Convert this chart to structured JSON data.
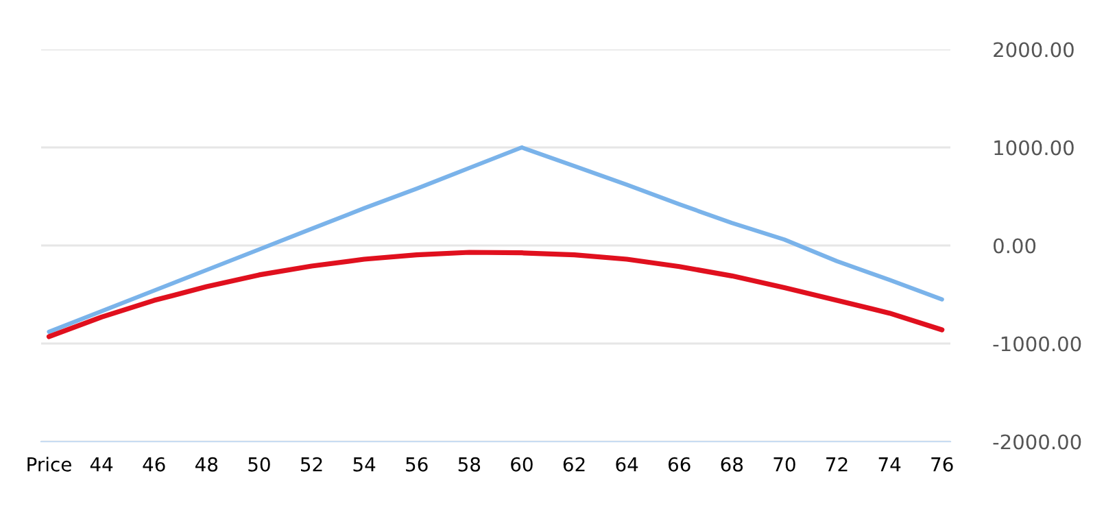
{
  "chart_data": {
    "type": "line",
    "categories": [
      "Price",
      "44",
      "46",
      "48",
      "50",
      "52",
      "54",
      "56",
      "58",
      "60",
      "62",
      "64",
      "66",
      "68",
      "70",
      "72",
      "74",
      "76"
    ],
    "series": [
      {
        "color": "#7ab3ea",
        "values": [
          -880,
          -670,
          -460,
          -250,
          -40,
          170,
          380,
          580,
          790,
          1000,
          810,
          620,
          420,
          230,
          60,
          -160,
          -350,
          -550
        ]
      },
      {
        "color": "#e0101e",
        "values": [
          -930,
          -730,
          -560,
          -420,
          -300,
          -210,
          -140,
          -95,
          -70,
          -75,
          -95,
          -140,
          -215,
          -310,
          -430,
          -560,
          -690,
          -860
        ]
      }
    ],
    "ylim": [
      -2000,
      2000
    ],
    "yticks": [
      {
        "value": -2000,
        "label": "-2000.00"
      },
      {
        "value": -1000,
        "label": "-1000.00"
      },
      {
        "value": 0,
        "label": "0.00"
      },
      {
        "value": 1000,
        "label": "1000.00"
      },
      {
        "value": 2000,
        "label": "2000.00"
      }
    ],
    "grid": "y",
    "marker": "none",
    "line_style": "solid"
  }
}
